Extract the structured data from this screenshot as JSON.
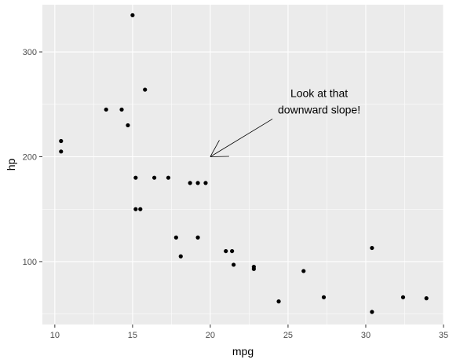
{
  "chart_data": {
    "type": "scatter",
    "xlabel": "mpg",
    "ylabel": "hp",
    "xlim": [
      9.2,
      35.0
    ],
    "ylim": [
      40,
      345
    ],
    "x_ticks": [
      10,
      15,
      20,
      25,
      30,
      35
    ],
    "y_ticks": [
      100,
      200,
      300
    ],
    "grid": true,
    "colors": {
      "panel": "#ebebeb",
      "grid": "#ffffff",
      "points": "#000000",
      "tick_text": "#4d4d4d",
      "tick_mark": "#333333"
    },
    "points": [
      {
        "x": 10.4,
        "y": 215
      },
      {
        "x": 10.4,
        "y": 205
      },
      {
        "x": 13.3,
        "y": 245
      },
      {
        "x": 14.3,
        "y": 245
      },
      {
        "x": 14.7,
        "y": 230
      },
      {
        "x": 15.0,
        "y": 335
      },
      {
        "x": 15.2,
        "y": 180
      },
      {
        "x": 15.2,
        "y": 150
      },
      {
        "x": 15.5,
        "y": 150
      },
      {
        "x": 15.8,
        "y": 264
      },
      {
        "x": 16.4,
        "y": 180
      },
      {
        "x": 17.3,
        "y": 180
      },
      {
        "x": 17.8,
        "y": 123
      },
      {
        "x": 18.1,
        "y": 105
      },
      {
        "x": 18.7,
        "y": 175
      },
      {
        "x": 19.2,
        "y": 175
      },
      {
        "x": 19.2,
        "y": 123
      },
      {
        "x": 19.7,
        "y": 175
      },
      {
        "x": 21.0,
        "y": 110
      },
      {
        "x": 21.4,
        "y": 110
      },
      {
        "x": 21.5,
        "y": 97
      },
      {
        "x": 22.8,
        "y": 93
      },
      {
        "x": 22.8,
        "y": 95
      },
      {
        "x": 24.4,
        "y": 62
      },
      {
        "x": 26.0,
        "y": 91
      },
      {
        "x": 27.3,
        "y": 66
      },
      {
        "x": 30.4,
        "y": 113
      },
      {
        "x": 30.4,
        "y": 52
      },
      {
        "x": 32.4,
        "y": 66
      },
      {
        "x": 33.9,
        "y": 65
      }
    ],
    "annotations": [
      {
        "text_lines": [
          "Look at that",
          "downward slope!"
        ],
        "text_x": 27,
        "text_y": 245,
        "arrow_from": [
          24,
          236
        ],
        "arrow_to": [
          20,
          200
        ]
      }
    ]
  }
}
